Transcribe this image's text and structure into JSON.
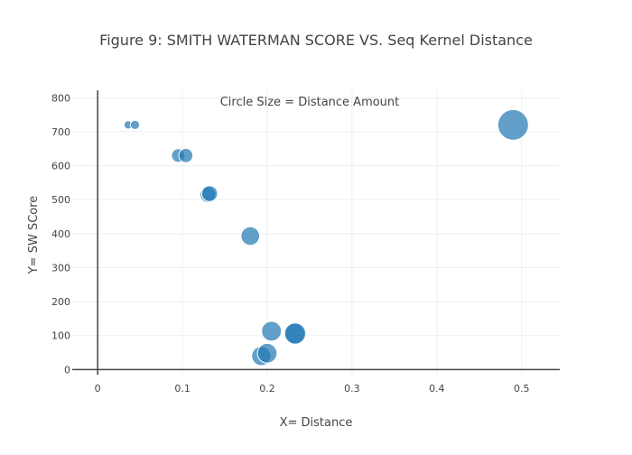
{
  "chart_data": {
    "type": "scatter",
    "title": "Figure 9: SMITH WATERMAN SCORE VS. Seq Kernel Distance",
    "xlabel": "X= Distance",
    "ylabel": "Y= SW SCore",
    "annotation": "Circle Size = Distance Amount",
    "xlim": [
      -0.03,
      0.545
    ],
    "ylim": [
      -15,
      822
    ],
    "x_ticks": [
      0,
      0.1,
      0.2,
      0.3,
      0.4,
      0.5
    ],
    "x_tick_labels": [
      "0",
      "0.1",
      "0.2",
      "0.3",
      "0.4",
      "0.5"
    ],
    "y_ticks": [
      0,
      100,
      200,
      300,
      400,
      500,
      600,
      700,
      800
    ],
    "y_tick_labels": [
      "0",
      "100",
      "200",
      "300",
      "400",
      "500",
      "600",
      "700",
      "800"
    ],
    "grid": true,
    "legend": "none",
    "marker_color": "#1f77b4",
    "marker_opacity": 0.7,
    "points": [
      {
        "x": 0.036,
        "y": 720,
        "size": 0.036
      },
      {
        "x": 0.044,
        "y": 720,
        "size": 0.044
      },
      {
        "x": 0.095,
        "y": 630,
        "size": 0.095
      },
      {
        "x": 0.104,
        "y": 630,
        "size": 0.104
      },
      {
        "x": 0.13,
        "y": 515,
        "size": 0.13
      },
      {
        "x": 0.132,
        "y": 518,
        "size": 0.132
      },
      {
        "x": 0.18,
        "y": 393,
        "size": 0.18
      },
      {
        "x": 0.193,
        "y": 40,
        "size": 0.193
      },
      {
        "x": 0.2,
        "y": 48,
        "size": 0.2
      },
      {
        "x": 0.205,
        "y": 113,
        "size": 0.205
      },
      {
        "x": 0.232,
        "y": 106,
        "size": 0.232
      },
      {
        "x": 0.233,
        "y": 106,
        "size": 0.233
      },
      {
        "x": 0.49,
        "y": 720,
        "size": 0.49
      }
    ]
  }
}
